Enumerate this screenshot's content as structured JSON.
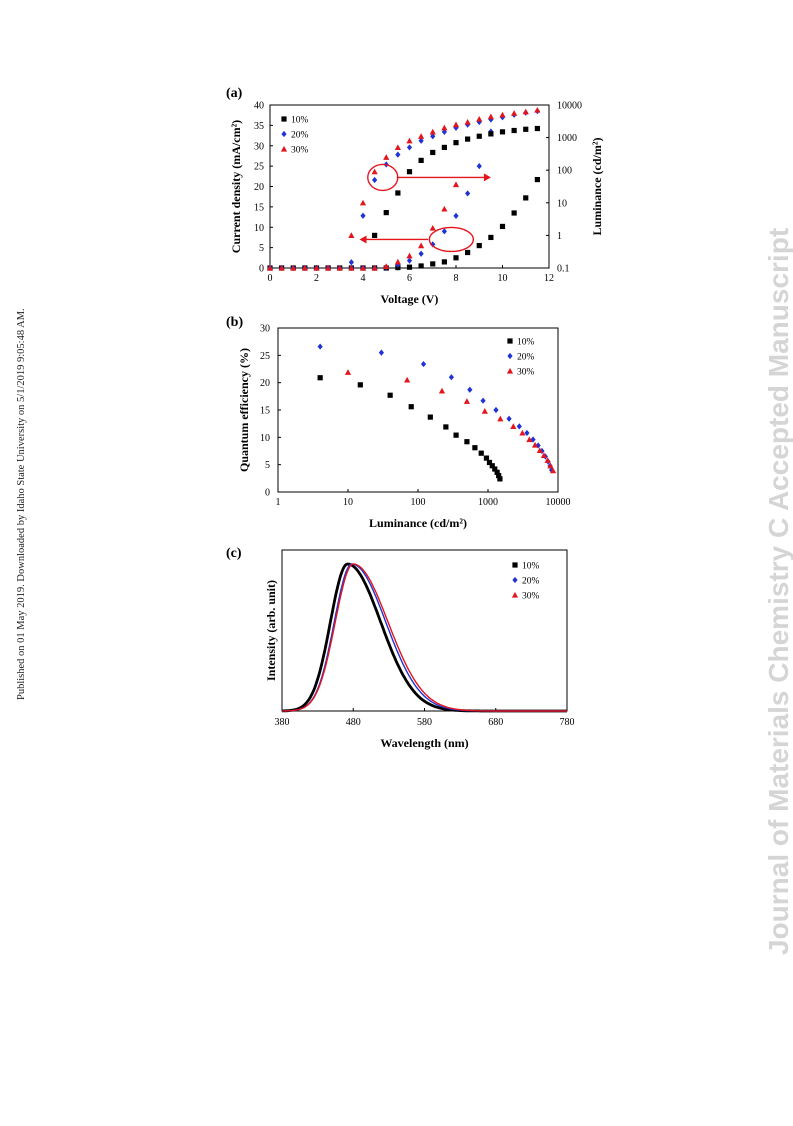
{
  "side_note_left": "Published on 01 May 2019. Downloaded by Idaho State University on 5/1/2019 9:05:48 AM.",
  "watermark_right": "Journal of Materials Chemistry C Accepted Manuscript",
  "colors": {
    "s10": "#000000",
    "s20": "#1f33d6",
    "s30": "#e3161d",
    "arrow": "#e3161d",
    "watermark": "#d5d5d5"
  },
  "chart_data": [
    {
      "panel": "(a)",
      "type": "scatter",
      "xlabel": "Voltage (V)",
      "ylabel": "Current density (mA/cm²)",
      "y2label": "Luminance (cd/m²)",
      "xlim": [
        0,
        12
      ],
      "ylim": [
        0,
        40
      ],
      "y2lim": [
        0.1,
        10000
      ],
      "y2scale": "log",
      "xticks": [
        "0",
        "2",
        "4",
        "6",
        "8",
        "10",
        "12"
      ],
      "yticks": [
        "0",
        "5",
        "10",
        "15",
        "20",
        "25",
        "30",
        "35",
        "40"
      ],
      "y2ticks": [
        "0.1",
        "1",
        "10",
        "100",
        "1000",
        "10000"
      ],
      "legend": [
        "10%",
        "20%",
        "30%"
      ],
      "legend_position": "top-left",
      "x": [
        0,
        0.5,
        1,
        1.5,
        2,
        2.5,
        3,
        3.5,
        4,
        4.5,
        5,
        5.5,
        6,
        6.5,
        7,
        7.5,
        8,
        8.5,
        9,
        9.5,
        10,
        10.5,
        11,
        11.5
      ],
      "current_density": [
        {
          "name": "10%",
          "values": [
            0,
            0,
            0,
            0,
            0,
            0,
            0,
            0,
            0,
            0,
            0,
            0.1,
            0.2,
            0.5,
            1.0,
            1.5,
            2.5,
            3.8,
            5.5,
            7.5,
            10.2,
            13.5,
            17.2,
            21.7
          ]
        },
        {
          "name": "20%",
          "values": [
            0,
            0,
            0,
            0,
            0,
            0,
            0,
            0,
            0,
            0,
            0.2,
            0.8,
            1.8,
            3.5,
            5.8,
            9.0,
            12.8,
            18.3,
            25.0,
            33.5
          ]
        },
        {
          "name": "30%",
          "values": [
            0,
            0,
            0,
            0,
            0,
            0,
            0,
            0,
            0,
            0,
            0.4,
            1.5,
            3.0,
            5.5,
            9.8,
            14.5,
            20.5
          ]
        }
      ],
      "luminance": [
        {
          "name": "10%",
          "values": [
            null,
            null,
            null,
            null,
            null,
            null,
            null,
            null,
            null,
            1.0,
            5.0,
            20,
            90,
            200,
            350,
            500,
            700,
            900,
            1100,
            1300,
            1500,
            1650,
            1800,
            1900
          ]
        },
        {
          "name": "20%",
          "values": [
            null,
            null,
            null,
            null,
            null,
            null,
            null,
            0.15,
            4.0,
            50,
            150,
            300,
            500,
            800,
            1100,
            1500,
            2000,
            2500,
            3000,
            3600,
            4200,
            5000,
            5800,
            6500
          ]
        },
        {
          "name": "30%",
          "values": [
            null,
            null,
            null,
            null,
            null,
            null,
            null,
            1.0,
            10,
            90,
            250,
            500,
            800,
            1100,
            1500,
            2000,
            2500,
            3000,
            3700,
            4400,
            5000,
            5600,
            6200,
            7000
          ]
        }
      ]
    },
    {
      "panel": "(b)",
      "type": "scatter",
      "xlabel": "Luminance (cd/m²)",
      "ylabel": "Quantum efficiency (%)",
      "xscale": "log",
      "xlim": [
        1,
        10000
      ],
      "ylim": [
        0,
        30
      ],
      "xticks": [
        "1",
        "10",
        "100",
        "1000",
        "10000"
      ],
      "yticks": [
        "0",
        "5",
        "10",
        "15",
        "20",
        "25",
        "30"
      ],
      "legend": [
        "10%",
        "20%",
        "30%"
      ],
      "legend_position": "top-right",
      "series": [
        {
          "name": "10%",
          "x": [
            4,
            15,
            40,
            80,
            150,
            250,
            350,
            500,
            650,
            800,
            950,
            1050,
            1150,
            1250,
            1350,
            1420,
            1480
          ],
          "y": [
            20.9,
            19.6,
            17.7,
            15.6,
            13.7,
            11.9,
            10.4,
            9.2,
            8.1,
            7.1,
            6.2,
            5.4,
            4.8,
            4.2,
            3.6,
            3.0,
            2.4
          ]
        },
        {
          "name": "20%",
          "x": [
            4,
            30,
            120,
            300,
            550,
            850,
            1300,
            2000,
            2800,
            3600,
            4400,
            5200,
            5900,
            6600,
            7200,
            7700,
            8100
          ],
          "y": [
            26.6,
            25.5,
            23.4,
            21.0,
            18.7,
            16.7,
            15.0,
            13.4,
            12.0,
            10.8,
            9.6,
            8.5,
            7.5,
            6.5,
            5.6,
            4.8,
            4.0
          ]
        },
        {
          "name": "30%",
          "x": [
            10,
            70,
            220,
            500,
            900,
            1500,
            2300,
            3100,
            3900,
            4700,
            5500,
            6300,
            7100,
            7800,
            8500
          ],
          "y": [
            21.9,
            20.5,
            18.5,
            16.6,
            14.8,
            13.4,
            12.0,
            10.8,
            9.6,
            8.6,
            7.6,
            6.7,
            5.8,
            4.8,
            3.9
          ]
        }
      ]
    },
    {
      "panel": "(c)",
      "type": "line",
      "xlabel": "Wavelength (nm)",
      "ylabel": "Intensity (arb. unit)",
      "xlim": [
        380,
        780
      ],
      "xticks": [
        "380",
        "480",
        "580",
        "680",
        "780"
      ],
      "legend": [
        "10%",
        "20%",
        "30%"
      ],
      "legend_position": "top-right",
      "series": [
        {
          "name": "10%",
          "peak": 472,
          "fwhm": 80
        },
        {
          "name": "20%",
          "peak": 478,
          "fwhm": 82
        },
        {
          "name": "30%",
          "peak": 480,
          "fwhm": 84
        }
      ]
    }
  ]
}
